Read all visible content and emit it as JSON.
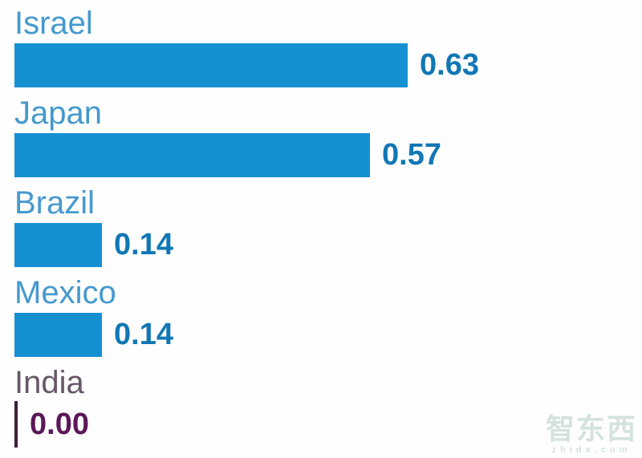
{
  "chart_data": {
    "type": "bar",
    "orientation": "horizontal",
    "title": "",
    "xlabel": "",
    "ylabel": "",
    "categories": [
      "Israel",
      "Japan",
      "Brazil",
      "Mexico",
      "India"
    ],
    "values": [
      0.63,
      0.57,
      0.14,
      0.14,
      0.0
    ],
    "xlim": [
      0,
      0.63
    ],
    "grid": false,
    "legend": "none",
    "colors": {
      "bar": "#1591d1",
      "category_label": "#4599cd",
      "value_label": "#1177b5",
      "india_label": "#675768",
      "india_value": "#5b1858",
      "india_zero_line": "#3f1d3c"
    },
    "rows": [
      {
        "label": "Israel",
        "value": 0.63,
        "value_label": "0.63",
        "bar_color": "#1591d1",
        "label_color": "#4599cd",
        "value_color": "#1177b5"
      },
      {
        "label": "Japan",
        "value": 0.57,
        "value_label": "0.57",
        "bar_color": "#1591d1",
        "label_color": "#4599cd",
        "value_color": "#1177b5"
      },
      {
        "label": "Brazil",
        "value": 0.14,
        "value_label": "0.14",
        "bar_color": "#1591d1",
        "label_color": "#4599cd",
        "value_color": "#1177b5"
      },
      {
        "label": "Mexico",
        "value": 0.14,
        "value_label": "0.14",
        "bar_color": "#1591d1",
        "label_color": "#4599cd",
        "value_color": "#1177b5"
      },
      {
        "label": "India",
        "value": 0.0,
        "value_label": "0.00",
        "bar_color": "#3f1d3c",
        "label_color": "#675768",
        "value_color": "#5b1858"
      }
    ]
  },
  "watermark": {
    "logo": "智东西",
    "domain": "zhidx.com"
  }
}
